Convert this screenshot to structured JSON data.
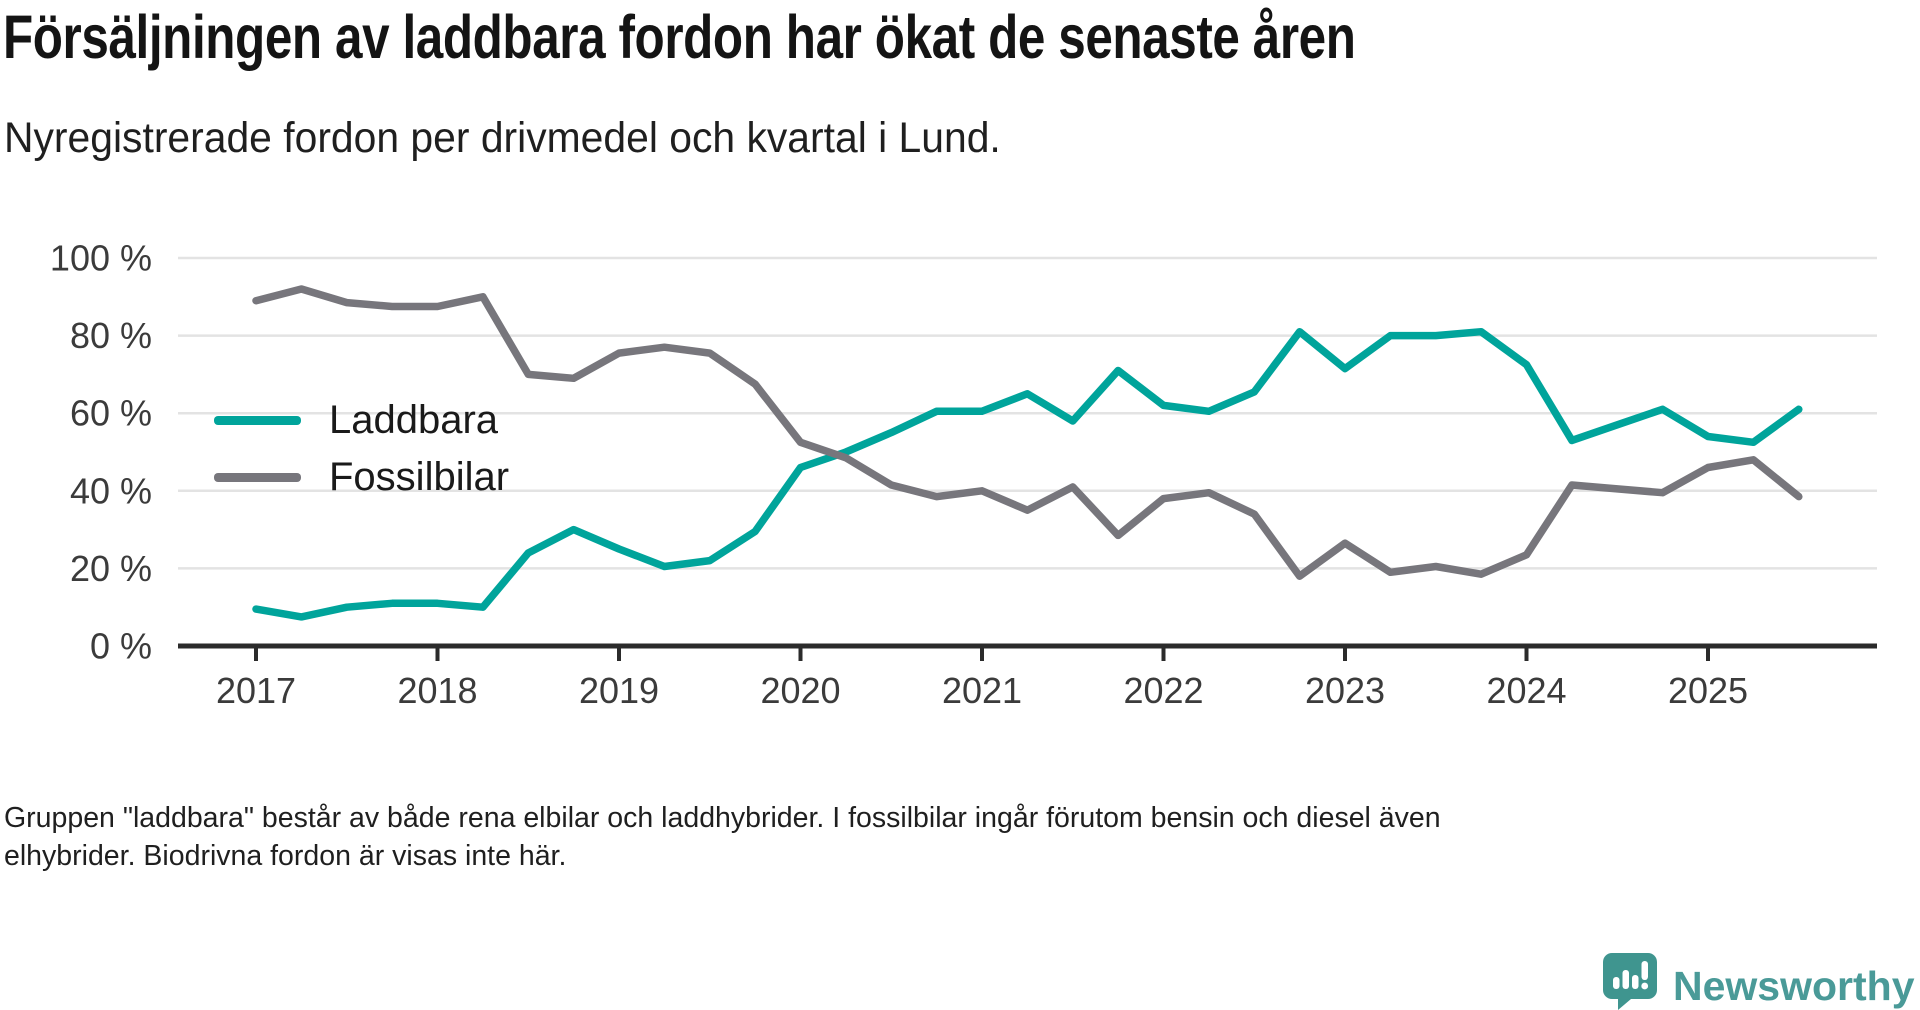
{
  "header": {
    "title": "Försäljningen av laddbara fordon har ökat de senaste åren",
    "subtitle": "Nyregistrerade fordon per drivmedel och kvartal i Lund."
  },
  "chart_data": {
    "type": "line",
    "title": "Försäljningen av laddbara fordon har ökat de senaste åren",
    "subtitle": "Nyregistrerade fordon per drivmedel och kvartal i Lund.",
    "unit": "%",
    "x": [
      "2017Q1",
      "2017Q2",
      "2017Q3",
      "2017Q4",
      "2018Q1",
      "2018Q2",
      "2018Q3",
      "2018Q4",
      "2019Q1",
      "2019Q2",
      "2019Q3",
      "2019Q4",
      "2020Q1",
      "2020Q2",
      "2020Q3",
      "2020Q4",
      "2021Q1",
      "2021Q2",
      "2021Q3",
      "2021Q4",
      "2022Q1",
      "2022Q2",
      "2022Q3",
      "2022Q4",
      "2023Q1",
      "2023Q2",
      "2023Q3",
      "2023Q4",
      "2024Q1",
      "2024Q2",
      "2024Q3",
      "2024Q4",
      "2025Q1",
      "2025Q2",
      "2025Q3"
    ],
    "series": [
      {
        "name": "Laddbara",
        "color": "#00a49b",
        "values": [
          9.5,
          7.5,
          10,
          11,
          11,
          10,
          24,
          30,
          25,
          20.5,
          22,
          29.5,
          46,
          50,
          55,
          60.5,
          60.5,
          65,
          58,
          71,
          62,
          60.5,
          65.5,
          81,
          71.5,
          80,
          80,
          81,
          72.5,
          53,
          57,
          61,
          54,
          52.5,
          61
        ]
      },
      {
        "name": "Fossilbilar",
        "color": "#77767c",
        "values": [
          89,
          92,
          88.5,
          87.5,
          87.5,
          90,
          70,
          69,
          75.5,
          77,
          75.5,
          67.5,
          52.5,
          48.5,
          41.5,
          38.5,
          40,
          35,
          41,
          28.5,
          38,
          39.5,
          34,
          18,
          26.5,
          19,
          20.5,
          18.5,
          23.5,
          41.5,
          40.5,
          39.5,
          46,
          48,
          38.5
        ]
      }
    ],
    "y_axis": {
      "tick_labels": [
        "100 %",
        "80 %",
        "60 %",
        "40 %",
        "20 %",
        "0 %"
      ],
      "tick_values": [
        100,
        80,
        60,
        40,
        20,
        0
      ],
      "range": [
        0,
        100
      ]
    },
    "x_axis": {
      "year_labels": [
        "2017",
        "2018",
        "2019",
        "2020",
        "2021",
        "2022",
        "2023",
        "2024",
        "2025"
      ]
    },
    "legend": {
      "position": "inside-left"
    },
    "grid": "horizontal",
    "colors": {
      "gridline": "#e3e3e3",
      "axis": "#2b2b2b",
      "tick_label": "#3b3b3b"
    }
  },
  "footer": {
    "note_line1": "Gruppen \"laddbara\" består av både rena elbilar och laddhybrider. I fossilbilar ingår förutom bensin och diesel även",
    "note_line2": "elhybrider. Biodrivna fordon är visas inte här."
  },
  "logo": {
    "text": "Newsworthy",
    "icon": "newsworthy-bubble-bar-chart-icon",
    "color": "#4a9a98",
    "icon_color": "#3f958f"
  }
}
